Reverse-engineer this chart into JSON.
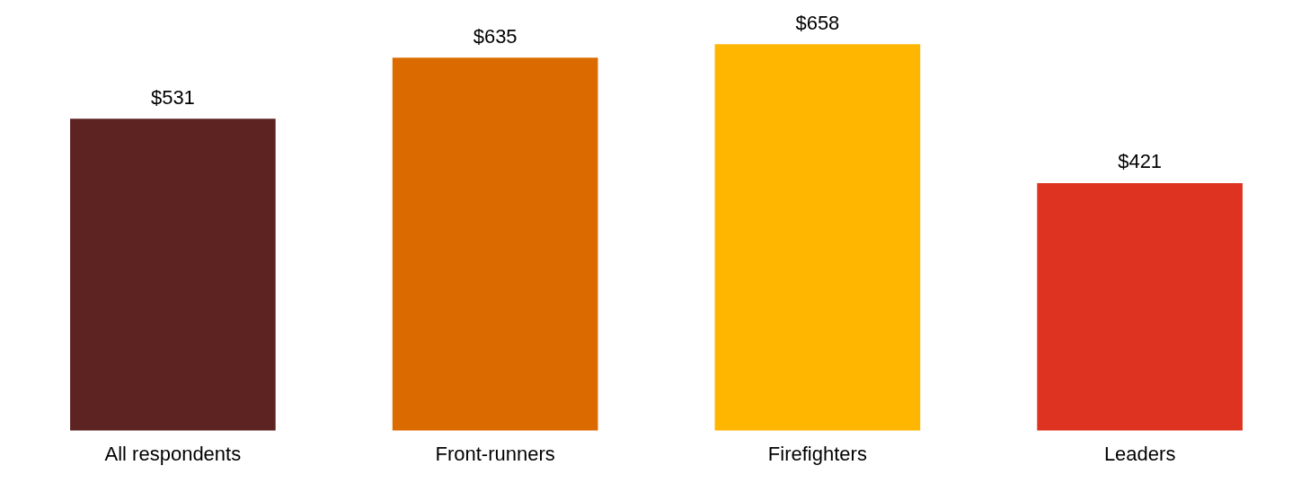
{
  "chart_data": {
    "type": "bar",
    "categories": [
      "All respondents",
      "Front-runners",
      "Firefighters",
      "Leaders"
    ],
    "values": [
      531,
      635,
      658,
      421
    ],
    "colors": [
      "#5c2322",
      "#db6a00",
      "#ffb600",
      "#dd3320"
    ],
    "value_labels": [
      "$531",
      "$635",
      "$658",
      "$421"
    ],
    "grid": false
  }
}
